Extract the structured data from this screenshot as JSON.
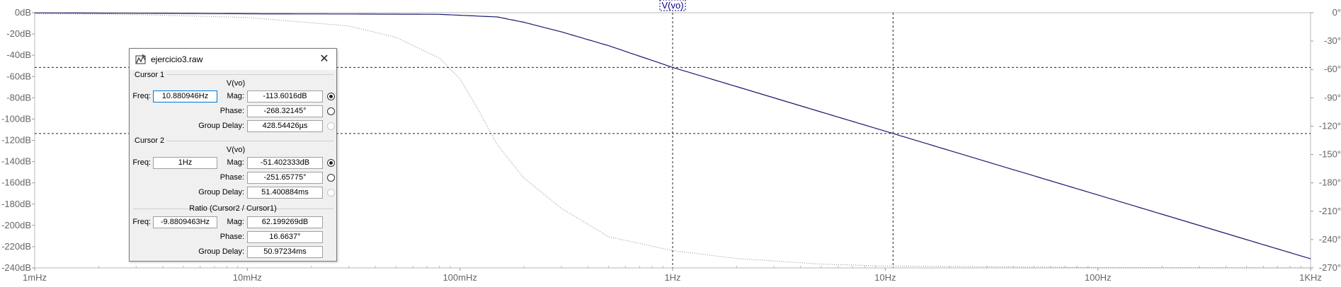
{
  "chart_data": {
    "type": "line",
    "title": "V(vo)",
    "xscale": "log",
    "xlim": [
      0.001,
      1000
    ],
    "x_ticks": [
      "1mHz",
      "10mHz",
      "100mHz",
      "1Hz",
      "10Hz",
      "100Hz",
      "1KHz"
    ],
    "y_left_ticks": [
      "0dB",
      "-20dB",
      "-40dB",
      "-60dB",
      "-80dB",
      "-100dB",
      "-120dB",
      "-140dB",
      "-160dB",
      "-180dB",
      "-200dB",
      "-220dB",
      "-240dB"
    ],
    "y_right_ticks": [
      "0°",
      "-30°",
      "-60°",
      "-90°",
      "-120°",
      "-150°",
      "-180°",
      "-210°",
      "-240°",
      "-270°"
    ],
    "y_left_lim": [
      -240,
      0
    ],
    "y_right_lim": [
      -270,
      0
    ],
    "series": [
      {
        "name": "V(vo)",
        "axis": "magnitude",
        "x": [
          0.001,
          0.003,
          0.01,
          0.03,
          0.08,
          0.15,
          0.2,
          0.25,
          0.3,
          0.5,
          1,
          2,
          5,
          10,
          20,
          50,
          100,
          200,
          500,
          1000
        ],
        "y": [
          -0.1,
          -0.5,
          -1.0,
          -1.2,
          -1.5,
          -4,
          -9,
          -14,
          -18,
          -31,
          -51.4,
          -69.5,
          -93.4,
          -111.4,
          -129.5,
          -153.4,
          -171.4,
          -189.5,
          -213.4,
          -231.4
        ]
      },
      {
        "name": "Phase",
        "axis": "phase",
        "style": "dotted",
        "x": [
          0.001,
          0.003,
          0.01,
          0.03,
          0.05,
          0.08,
          0.1,
          0.12,
          0.15,
          0.2,
          0.3,
          0.5,
          1,
          2,
          5,
          10,
          100,
          1000
        ],
        "y": [
          -1,
          -2,
          -5,
          -14,
          -26,
          -48,
          -70,
          -100,
          -140,
          -175,
          -207,
          -237,
          -251.7,
          -260,
          -266,
          -268,
          -269.5,
          -270
        ]
      }
    ],
    "cursors": [
      {
        "freq": 10.880946,
        "mag_db": -113.6016
      },
      {
        "freq": 1,
        "mag_db": -51.402333
      }
    ]
  },
  "dialog": {
    "title": "ejercicio3.raw",
    "cursor1": {
      "header": "Cursor 1",
      "trace": "V(vo)",
      "freq_label": "Freq:",
      "freq": "10.880946Hz",
      "mag_label": "Mag:",
      "mag": "-113.6016dB",
      "phase_label": "Phase:",
      "phase": "-268.32145°",
      "gd_label": "Group Delay:",
      "gd": "428.54426µs"
    },
    "cursor2": {
      "header": "Cursor 2",
      "trace": "V(vo)",
      "freq_label": "Freq:",
      "freq": "1Hz",
      "mag_label": "Mag:",
      "mag": "-51.402333dB",
      "phase_label": "Phase:",
      "phase": "-251.65775°",
      "gd_label": "Group Delay:",
      "gd": "51.400884ms"
    },
    "ratio": {
      "header": "Ratio (Cursor2 / Cursor1)",
      "freq_label": "Freq:",
      "freq": "-9.8809463Hz",
      "mag_label": "Mag:",
      "mag": "62.199269dB",
      "phase_label": "Phase:",
      "phase": "16.6637°",
      "gd_label": "Group Delay:",
      "gd": "50.97234ms"
    }
  },
  "colors": {
    "magnitude": "#1a1a6e",
    "phase": "#8a8a8a",
    "grid": "#d0d0d0",
    "cursor": "#222222",
    "title": "#000080"
  }
}
